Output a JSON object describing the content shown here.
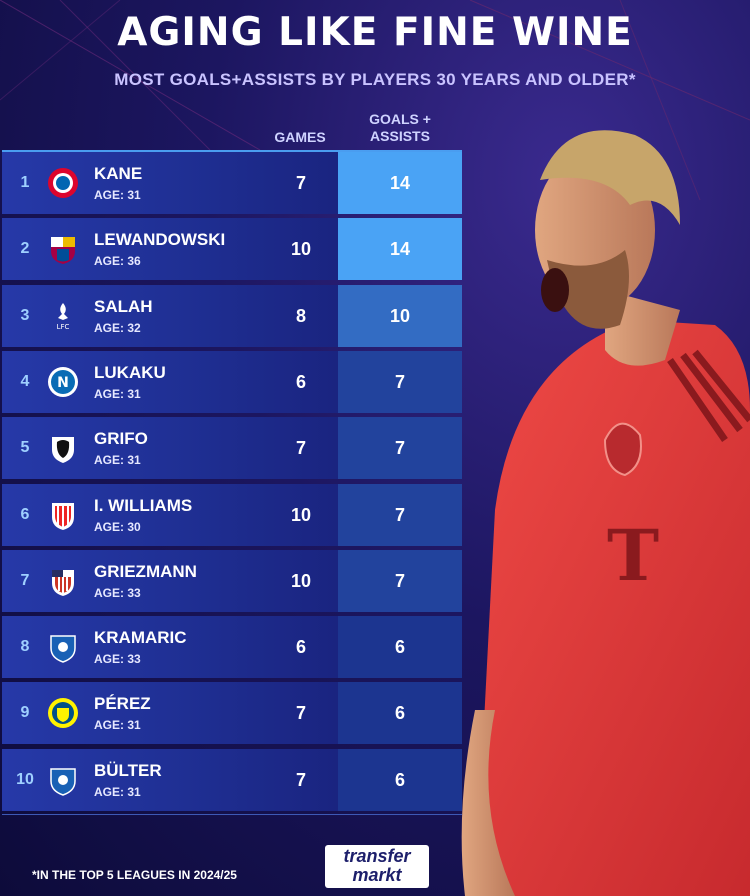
{
  "title": "AGING LIKE FINE WINE",
  "subtitle": "MOST GOALS+ASSISTS BY PLAYERS 30 YEARS AND OLDER*",
  "footnote": "*IN THE TOP 5 LEAGUES IN 2024/25",
  "logo": {
    "line1": "transfer",
    "line2": "markt"
  },
  "colors": {
    "rule": "#4a9df0",
    "highlight_max": "#4aa3f5",
    "highlight_min": "#1c3590",
    "rank_text": "#9fd0ff",
    "jersey": "#e83a3a"
  },
  "chart_data": {
    "type": "table",
    "columns": [
      "GAMES",
      "GOALS + ASSISTS"
    ],
    "rows": [
      {
        "rank": "1",
        "name": "KANE",
        "age": "AGE: 31",
        "games": 7,
        "goals_assists": 14,
        "club_icon": "bayern-crest-icon"
      },
      {
        "rank": "2",
        "name": "LEWANDOWSKI",
        "age": "AGE: 36",
        "games": 10,
        "goals_assists": 14,
        "club_icon": "barcelona-crest-icon"
      },
      {
        "rank": "3",
        "name": "SALAH",
        "age": "AGE: 32",
        "games": 8,
        "goals_assists": 10,
        "club_icon": "liverpool-crest-icon"
      },
      {
        "rank": "4",
        "name": "LUKAKU",
        "age": "AGE: 31",
        "games": 6,
        "goals_assists": 7,
        "club_icon": "napoli-crest-icon"
      },
      {
        "rank": "5",
        "name": "GRIFO",
        "age": "AGE: 31",
        "games": 7,
        "goals_assists": 7,
        "club_icon": "freiburg-crest-icon"
      },
      {
        "rank": "6",
        "name": "I. WILLIAMS",
        "age": "AGE: 30",
        "games": 10,
        "goals_assists": 7,
        "club_icon": "athletic-crest-icon"
      },
      {
        "rank": "7",
        "name": "GRIEZMANN",
        "age": "AGE: 33",
        "games": 10,
        "goals_assists": 7,
        "club_icon": "atletico-crest-icon"
      },
      {
        "rank": "8",
        "name": "KRAMARIC",
        "age": "AGE: 33",
        "games": 6,
        "goals_assists": 6,
        "club_icon": "hoffenheim-crest-icon"
      },
      {
        "rank": "9",
        "name": "PÉREZ",
        "age": "AGE: 31",
        "games": 7,
        "goals_assists": 6,
        "club_icon": "villarreal-crest-icon"
      },
      {
        "rank": "10",
        "name": "BÜLTER",
        "age": "AGE: 31",
        "games": 7,
        "goals_assists": 6,
        "club_icon": "hoffenheim-crest-icon"
      }
    ]
  }
}
